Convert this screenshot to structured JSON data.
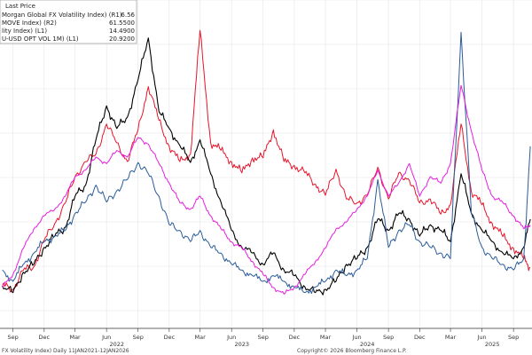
{
  "chart_data": {
    "type": "line",
    "legend": {
      "header": "Last Price",
      "placement": "top-left",
      "entries": [
        {
          "label": "Morgan Global FX Volatility Index)  (R1)",
          "value": "6.56"
        },
        {
          "label": "MOVE Index)  (R2)",
          "value": "61.5500"
        },
        {
          "label": "lity Index)  (L1)",
          "value": "14.4900"
        },
        {
          "label": "U-USD OPT VOL 1M)  (L1)",
          "value": "20.9200"
        }
      ]
    },
    "x_tick_labels": [
      {
        "label": "Sep",
        "date": "2021-09-01"
      },
      {
        "label": "Dec",
        "date": "2021-12-01"
      },
      {
        "label": "Mar",
        "date": "2022-03-01"
      },
      {
        "label": "Jun",
        "date": "2022-06-01"
      },
      {
        "label": "Sep",
        "date": "2022-09-01"
      },
      {
        "label": "Dec",
        "date": "2022-12-01"
      },
      {
        "label": "Mar",
        "date": "2023-03-01"
      },
      {
        "label": "Jun",
        "date": "2023-06-01"
      },
      {
        "label": "Sep",
        "date": "2023-09-01"
      },
      {
        "label": "Dec",
        "date": "2023-12-01"
      },
      {
        "label": "Mar",
        "date": "2024-03-01"
      },
      {
        "label": "Jun",
        "date": "2024-06-01"
      },
      {
        "label": "Sep",
        "date": "2024-09-01"
      },
      {
        "label": "Dec",
        "date": "2024-12-01"
      },
      {
        "label": "Mar",
        "date": "2025-03-01"
      },
      {
        "label": "Jun",
        "date": "2025-06-01"
      },
      {
        "label": "Sep",
        "date": "2025-09-01"
      }
    ],
    "year_labels": [
      {
        "label": "2022",
        "date": "2022-07-01"
      },
      {
        "label": "2023",
        "date": "2023-07-01"
      },
      {
        "label": "2024",
        "date": "2024-07-01"
      },
      {
        "label": "2025",
        "date": "2025-07-01"
      }
    ],
    "x_range": [
      "2021-07-25",
      "2025-10-25"
    ],
    "grid": true,
    "series": [
      {
        "color": "#e8142a",
        "axis": "R2",
        "values": [
          [
            "2021-08-01",
            52
          ],
          [
            "2021-09-01",
            50
          ],
          [
            "2021-10-01",
            60
          ],
          [
            "2021-11-01",
            62
          ],
          [
            "2021-12-01",
            76
          ],
          [
            "2022-01-01",
            85
          ],
          [
            "2022-02-01",
            96
          ],
          [
            "2022-03-01",
            110
          ],
          [
            "2022-04-01",
            118
          ],
          [
            "2022-05-01",
            122
          ],
          [
            "2022-06-01",
            138
          ],
          [
            "2022-07-01",
            128
          ],
          [
            "2022-08-01",
            118
          ],
          [
            "2022-09-01",
            135
          ],
          [
            "2022-10-01",
            158
          ],
          [
            "2022-11-01",
            140
          ],
          [
            "2022-12-01",
            126
          ],
          [
            "2023-01-01",
            118
          ],
          [
            "2023-02-01",
            122
          ],
          [
            "2023-03-01",
            188
          ],
          [
            "2023-04-01",
            128
          ],
          [
            "2023-05-01",
            124
          ],
          [
            "2023-06-01",
            118
          ],
          [
            "2023-07-01",
            112
          ],
          [
            "2023-08-01",
            120
          ],
          [
            "2023-09-01",
            120
          ],
          [
            "2023-10-01",
            135
          ],
          [
            "2023-11-01",
            118
          ],
          [
            "2023-12-01",
            116
          ],
          [
            "2024-01-01",
            112
          ],
          [
            "2024-02-01",
            106
          ],
          [
            "2024-03-01",
            100
          ],
          [
            "2024-04-01",
            114
          ],
          [
            "2024-05-01",
            98
          ],
          [
            "2024-06-01",
            96
          ],
          [
            "2024-07-01",
            100
          ],
          [
            "2024-08-01",
            115
          ],
          [
            "2024-09-01",
            98
          ],
          [
            "2024-10-01",
            112
          ],
          [
            "2024-11-01",
            108
          ],
          [
            "2024-12-01",
            96
          ],
          [
            "2025-01-01",
            98
          ],
          [
            "2025-02-01",
            90
          ],
          [
            "2025-03-01",
            95
          ],
          [
            "2025-04-01",
            138
          ],
          [
            "2025-05-01",
            102
          ],
          [
            "2025-06-01",
            95
          ],
          [
            "2025-07-01",
            85
          ],
          [
            "2025-08-01",
            78
          ],
          [
            "2025-09-01",
            72
          ],
          [
            "2025-10-01",
            66
          ],
          [
            "2025-10-20",
            61.55
          ]
        ]
      },
      {
        "color": "#000000",
        "axis": "L1",
        "values": [
          [
            "2021-08-01",
            8.6
          ],
          [
            "2021-09-01",
            8.0
          ],
          [
            "2021-10-01",
            9.8
          ],
          [
            "2021-11-01",
            10.5
          ],
          [
            "2021-12-01",
            12.0
          ],
          [
            "2022-01-01",
            13.0
          ],
          [
            "2022-02-01",
            13.8
          ],
          [
            "2022-03-01",
            16.5
          ],
          [
            "2022-04-01",
            17.5
          ],
          [
            "2022-05-01",
            21.5
          ],
          [
            "2022-06-01",
            24.5
          ],
          [
            "2022-07-01",
            22.5
          ],
          [
            "2022-08-01",
            23.5
          ],
          [
            "2022-09-01",
            26.8
          ],
          [
            "2022-10-01",
            30.5
          ],
          [
            "2022-11-01",
            24.0
          ],
          [
            "2022-12-01",
            22.5
          ],
          [
            "2023-01-01",
            21.0
          ],
          [
            "2023-02-01",
            19.5
          ],
          [
            "2023-03-01",
            21.5
          ],
          [
            "2023-04-01",
            18.5
          ],
          [
            "2023-05-01",
            16.0
          ],
          [
            "2023-06-01",
            13.5
          ],
          [
            "2023-07-01",
            12.0
          ],
          [
            "2023-08-01",
            11.5
          ],
          [
            "2023-09-01",
            10.5
          ],
          [
            "2023-10-01",
            11.5
          ],
          [
            "2023-11-01",
            10.0
          ],
          [
            "2023-12-01",
            9.5
          ],
          [
            "2024-01-01",
            8.5
          ],
          [
            "2024-02-01",
            8.0
          ],
          [
            "2024-03-01",
            8.3
          ],
          [
            "2024-04-01",
            9.0
          ],
          [
            "2024-05-01",
            10.5
          ],
          [
            "2024-06-01",
            11.0
          ],
          [
            "2024-07-01",
            12.0
          ],
          [
            "2024-08-01",
            14.5
          ],
          [
            "2024-09-01",
            13.5
          ],
          [
            "2024-10-01",
            15.0
          ],
          [
            "2024-11-01",
            14.5
          ],
          [
            "2024-12-01",
            13.0
          ],
          [
            "2025-01-01",
            14.0
          ],
          [
            "2025-02-01",
            13.5
          ],
          [
            "2025-03-01",
            12.5
          ],
          [
            "2025-04-01",
            18.5
          ],
          [
            "2025-05-01",
            15.0
          ],
          [
            "2025-06-01",
            13.5
          ],
          [
            "2025-07-01",
            12.5
          ],
          [
            "2025-08-01",
            11.5
          ],
          [
            "2025-09-01",
            11.0
          ],
          [
            "2025-10-01",
            12.0
          ],
          [
            "2025-10-20",
            14.49
          ]
        ]
      },
      {
        "color": "#2a5c99",
        "axis": "L1",
        "values": [
          [
            "2021-08-01",
            10.0
          ],
          [
            "2021-09-01",
            9.0
          ],
          [
            "2021-10-01",
            10.5
          ],
          [
            "2021-11-01",
            11.5
          ],
          [
            "2021-12-01",
            12.5
          ],
          [
            "2022-01-01",
            13.0
          ],
          [
            "2022-02-01",
            13.5
          ],
          [
            "2022-03-01",
            15.0
          ],
          [
            "2022-04-01",
            16.0
          ],
          [
            "2022-05-01",
            17.5
          ],
          [
            "2022-06-01",
            16.0
          ],
          [
            "2022-07-01",
            17.0
          ],
          [
            "2022-08-01",
            18.0
          ],
          [
            "2022-09-01",
            19.5
          ],
          [
            "2022-10-01",
            18.5
          ],
          [
            "2022-11-01",
            16.5
          ],
          [
            "2022-12-01",
            14.0
          ],
          [
            "2023-01-01",
            13.5
          ],
          [
            "2023-02-01",
            12.5
          ],
          [
            "2023-03-01",
            13.5
          ],
          [
            "2023-04-01",
            12.0
          ],
          [
            "2023-05-01",
            11.5
          ],
          [
            "2023-06-01",
            10.5
          ],
          [
            "2023-07-01",
            10.0
          ],
          [
            "2023-08-01",
            9.5
          ],
          [
            "2023-09-01",
            9.0
          ],
          [
            "2023-10-01",
            9.5
          ],
          [
            "2023-11-01",
            9.0
          ],
          [
            "2023-12-01",
            8.5
          ],
          [
            "2024-01-01",
            8.0
          ],
          [
            "2024-02-01",
            8.5
          ],
          [
            "2024-03-01",
            9.0
          ],
          [
            "2024-04-01",
            10.0
          ],
          [
            "2024-05-01",
            9.5
          ],
          [
            "2024-06-01",
            10.0
          ],
          [
            "2024-07-01",
            11.0
          ],
          [
            "2024-08-01",
            18.0
          ],
          [
            "2024-09-01",
            12.0
          ],
          [
            "2024-10-01",
            13.5
          ],
          [
            "2024-11-01",
            14.0
          ],
          [
            "2024-12-01",
            12.5
          ],
          [
            "2025-01-01",
            12.0
          ],
          [
            "2025-02-01",
            11.5
          ],
          [
            "2025-03-01",
            11.0
          ],
          [
            "2025-04-01",
            31.0
          ],
          [
            "2025-05-01",
            15.0
          ],
          [
            "2025-06-01",
            12.0
          ],
          [
            "2025-07-01",
            11.0
          ],
          [
            "2025-08-01",
            10.5
          ],
          [
            "2025-09-01",
            10.0
          ],
          [
            "2025-10-01",
            11.0
          ],
          [
            "2025-10-20",
            20.92
          ]
        ]
      },
      {
        "color": "#e61ee0",
        "axis": "R1",
        "values": [
          [
            "2021-08-01",
            5.6
          ],
          [
            "2021-09-01",
            5.8
          ],
          [
            "2021-10-01",
            6.2
          ],
          [
            "2021-11-01",
            6.5
          ],
          [
            "2021-12-01",
            6.7
          ],
          [
            "2022-01-01",
            6.8
          ],
          [
            "2022-02-01",
            7.0
          ],
          [
            "2022-03-01",
            7.3
          ],
          [
            "2022-04-01",
            7.4
          ],
          [
            "2022-05-01",
            7.6
          ],
          [
            "2022-06-01",
            7.5
          ],
          [
            "2022-07-01",
            7.7
          ],
          [
            "2022-08-01",
            7.6
          ],
          [
            "2022-09-01",
            7.9
          ],
          [
            "2022-10-01",
            7.8
          ],
          [
            "2022-11-01",
            7.5
          ],
          [
            "2022-12-01",
            7.2
          ],
          [
            "2023-01-01",
            6.9
          ],
          [
            "2023-02-01",
            6.8
          ],
          [
            "2023-03-01",
            7.0
          ],
          [
            "2023-04-01",
            6.7
          ],
          [
            "2023-05-01",
            6.5
          ],
          [
            "2023-06-01",
            6.3
          ],
          [
            "2023-07-01",
            6.2
          ],
          [
            "2023-08-01",
            6.0
          ],
          [
            "2023-09-01",
            5.8
          ],
          [
            "2023-10-01",
            5.6
          ],
          [
            "2023-11-01",
            5.5
          ],
          [
            "2023-12-01",
            5.6
          ],
          [
            "2024-01-01",
            5.8
          ],
          [
            "2024-02-01",
            6.0
          ],
          [
            "2024-03-01",
            6.2
          ],
          [
            "2024-04-01",
            6.5
          ],
          [
            "2024-05-01",
            6.6
          ],
          [
            "2024-06-01",
            6.8
          ],
          [
            "2024-07-01",
            7.0
          ],
          [
            "2024-08-01",
            7.4
          ],
          [
            "2024-09-01",
            7.0
          ],
          [
            "2024-10-01",
            7.2
          ],
          [
            "2024-11-01",
            7.5
          ],
          [
            "2024-12-01",
            7.0
          ],
          [
            "2025-01-01",
            7.3
          ],
          [
            "2025-02-01",
            7.2
          ],
          [
            "2025-03-01",
            7.5
          ],
          [
            "2025-04-01",
            8.7
          ],
          [
            "2025-05-01",
            8.0
          ],
          [
            "2025-06-01",
            7.4
          ],
          [
            "2025-07-01",
            7.0
          ],
          [
            "2025-08-01",
            6.9
          ],
          [
            "2025-09-01",
            6.7
          ],
          [
            "2025-10-01",
            6.5
          ],
          [
            "2025-10-20",
            6.56
          ]
        ]
      }
    ]
  },
  "footer": {
    "left": "FX Volatility Index) Daily 11JAN2021-12JAN2026",
    "right": "Copyright© 2026 Bloomberg Finance L.P."
  }
}
